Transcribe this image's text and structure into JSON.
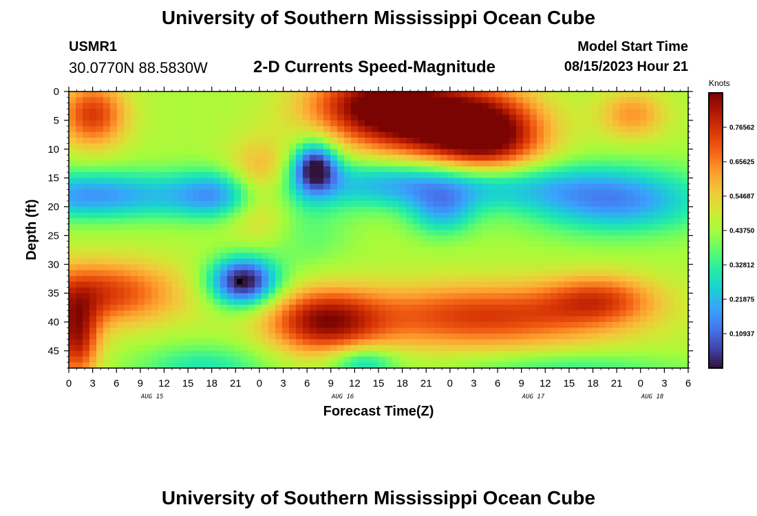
{
  "header": {
    "title": "University of Southern Mississippi Ocean Cube",
    "station": "USMR1",
    "coords": "30.0770N  88.5830W",
    "subtitle": "2-D Currents Speed-Magnitude",
    "model_start_label": "Model Start Time",
    "model_start_value": "08/15/2023 Hour 21",
    "footer_title": "University of Southern Mississippi Ocean Cube"
  },
  "chart_data": {
    "type": "heatmap",
    "title": "2-D Currents Speed-Magnitude",
    "xlabel": "Forecast Time(Z)",
    "ylabel": "Depth (ft)",
    "x_tick_labels": [
      "0",
      "3",
      "6",
      "9",
      "12",
      "15",
      "18",
      "21",
      "0",
      "3",
      "6",
      "9",
      "12",
      "15",
      "18",
      "21",
      "0",
      "3",
      "6",
      "9",
      "12",
      "15",
      "18",
      "21",
      "0",
      "3",
      "6"
    ],
    "x_day_labels": [
      {
        "label": "AUG 15",
        "at_tick": 3.5
      },
      {
        "label": "AUG 16",
        "at_tick": 11.5
      },
      {
        "label": "AUG 17",
        "at_tick": 19.5
      },
      {
        "label": "AUG 18",
        "at_tick": 24.5
      }
    ],
    "y_tick_labels": [
      "0",
      "5",
      "10",
      "15",
      "20",
      "25",
      "30",
      "35",
      "40",
      "45"
    ],
    "x_range_hours": [
      0,
      78
    ],
    "y_range_ft": [
      0,
      48
    ],
    "colorbar": {
      "unit": "Knots",
      "range": [
        0,
        0.875
      ],
      "tick_labels": [
        "0.76562",
        "0.65625",
        "0.54687",
        "0.43750",
        "0.32812",
        "0.21875",
        "0.10937"
      ],
      "tick_values": [
        0.765625,
        0.65625,
        0.546875,
        0.4375,
        0.328125,
        0.21875,
        0.109375
      ]
    },
    "speed_field": {
      "base": 0.45,
      "blobs": [
        {
          "t": 3,
          "d": 4,
          "st": 3,
          "sd": 4,
          "a": 0.3
        },
        {
          "t": 20,
          "d": 18,
          "st": 5,
          "sd": 3,
          "a": -0.28
        },
        {
          "t": 3,
          "d": 18,
          "st": 8,
          "sd": 3,
          "a": -0.28
        },
        {
          "t": 45,
          "d": 5,
          "st": 7,
          "sd": 5,
          "a": 0.38
        },
        {
          "t": 53,
          "d": 8,
          "st": 5,
          "sd": 5,
          "a": 0.38
        },
        {
          "t": 38,
          "d": 2,
          "st": 6,
          "sd": 4,
          "a": 0.3
        },
        {
          "t": 71,
          "d": 4,
          "st": 3,
          "sd": 3,
          "a": 0.18
        },
        {
          "t": 24,
          "d": 17,
          "st": 3,
          "sd": 5,
          "a": 0.28
        },
        {
          "t": 31,
          "d": 13,
          "st": 2,
          "sd": 3,
          "a": -0.42
        },
        {
          "t": 46,
          "d": 16,
          "st": 12,
          "sd": 3,
          "a": -0.3
        },
        {
          "t": 69,
          "d": 19,
          "st": 8,
          "sd": 4,
          "a": -0.28
        },
        {
          "t": 47,
          "d": 21,
          "st": 3,
          "sd": 3,
          "a": -0.2
        },
        {
          "t": 22,
          "d": 33,
          "st": 3,
          "sd": 3,
          "a": -0.48
        },
        {
          "t": 4,
          "d": 35,
          "st": 7,
          "sd": 4,
          "a": 0.3
        },
        {
          "t": 1,
          "d": 43,
          "st": 2,
          "sd": 5,
          "a": 0.35
        },
        {
          "t": 32,
          "d": 40,
          "st": 5,
          "sd": 4,
          "a": 0.35
        },
        {
          "t": 52,
          "d": 39,
          "st": 12,
          "sd": 4,
          "a": 0.3
        },
        {
          "t": 67,
          "d": 36,
          "st": 5,
          "sd": 3,
          "a": 0.22
        },
        {
          "t": 17,
          "d": 48,
          "st": 6,
          "sd": 3,
          "a": -0.15
        },
        {
          "t": 37,
          "d": 47,
          "st": 3,
          "sd": 2,
          "a": -0.2
        },
        {
          "t": 63,
          "d": 48,
          "st": 10,
          "sd": 2,
          "a": -0.12
        },
        {
          "t": 30,
          "d": 24,
          "st": 4,
          "sd": 5,
          "a": -0.08
        }
      ]
    },
    "marker": {
      "t": 21.5,
      "d": 33
    }
  },
  "colors": {
    "jet": [
      "#30123b",
      "#4145ab",
      "#4675ed",
      "#39a2fc",
      "#1bcfd4",
      "#24eca6",
      "#61fc6c",
      "#a4fc3b",
      "#d1e834",
      "#f3c63a",
      "#fe9b2d",
      "#f36315",
      "#d93806",
      "#b11901",
      "#7a0402"
    ]
  }
}
